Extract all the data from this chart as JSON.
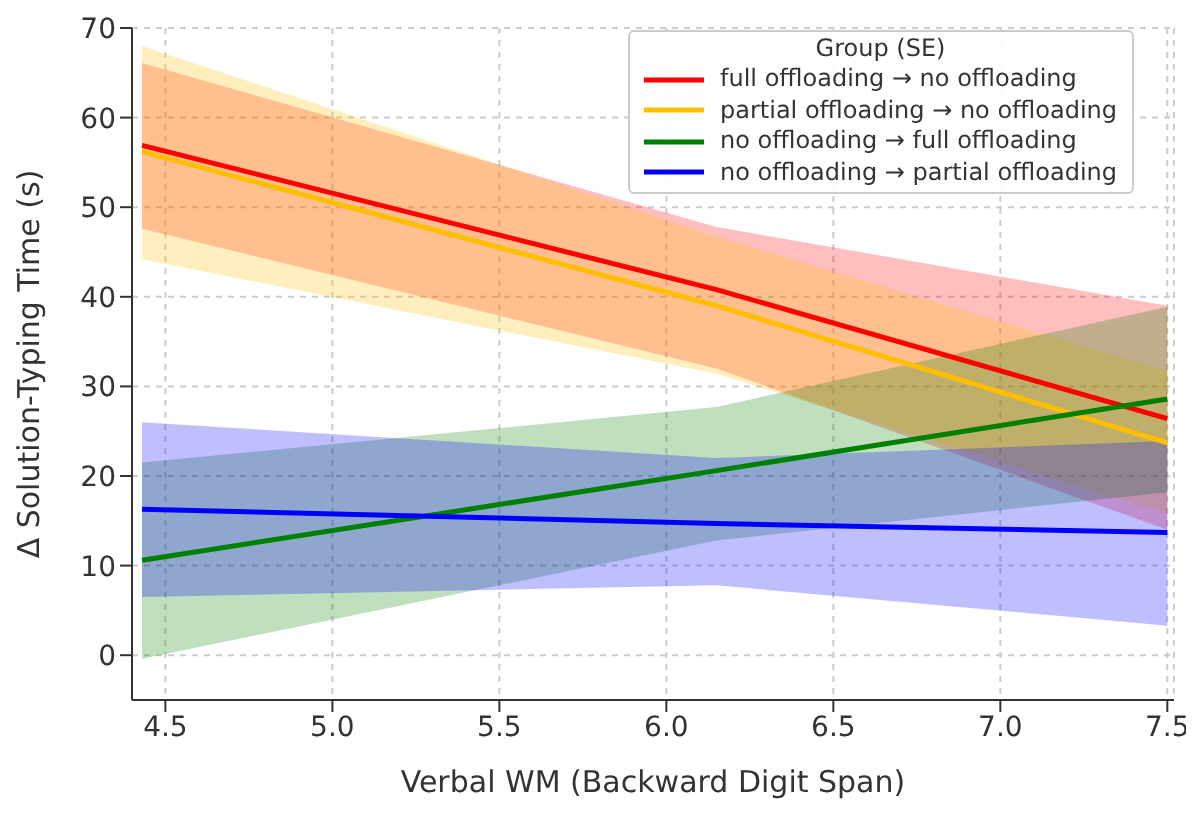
{
  "chart_data": {
    "type": "line",
    "xlabel": "Verbal WM (Backward Digit Span)",
    "ylabel": "Δ Solution-Typing Time (s)",
    "legend_title": "Group (SE)",
    "x": [
      4.43,
      6.15,
      7.5
    ],
    "xlim": [
      4.4,
      7.52
    ],
    "ylim": [
      -5,
      70
    ],
    "xticks": [
      4.5,
      {
        "value": 5,
        "label": "5.0"
      },
      5.5,
      {
        "value": 6,
        "label": "6.0"
      },
      6.5,
      {
        "value": 7,
        "label": "7.0"
      },
      7.5
    ],
    "yticks": [
      0,
      10,
      20,
      30,
      40,
      50,
      60,
      70
    ],
    "grid": true,
    "legend": "top right",
    "marker": "none",
    "line_style": "solid",
    "series": [
      {
        "name": "full offloading → no offloading",
        "color": "#ff0000",
        "values": [
          56.9,
          40.8,
          26.4
        ],
        "lower": [
          47.6,
          32,
          14
        ],
        "upper": [
          66.1,
          47.8,
          39
        ]
      },
      {
        "name": "partial offloading → no offloading",
        "color": "#ffbf00",
        "values": [
          56.2,
          39,
          23.7
        ],
        "lower": [
          44.2,
          31.4,
          15.8
        ],
        "upper": [
          68,
          46.7,
          31.7
        ]
      },
      {
        "name": "no offloading → full offloading",
        "color": "#008000",
        "values": [
          10.6,
          20.6,
          28.6
        ],
        "lower": [
          -0.4,
          12.8,
          18.2
        ],
        "upper": [
          21.5,
          27.7,
          38.9
        ]
      },
      {
        "name": "no offloading → partial offloading",
        "color": "#0000ff",
        "values": [
          16.3,
          14.7,
          13.7
        ],
        "lower": [
          6.5,
          7.8,
          3.3
        ],
        "upper": [
          26,
          22,
          23.9
        ]
      }
    ]
  }
}
